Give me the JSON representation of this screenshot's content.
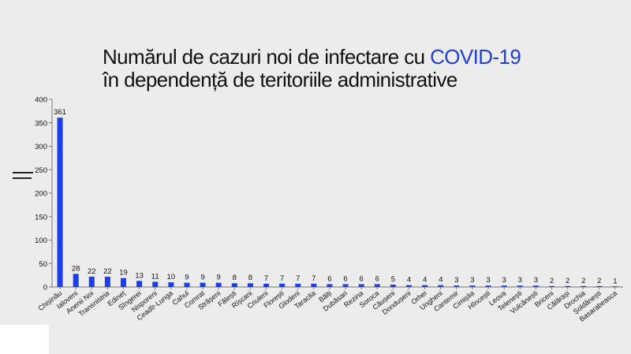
{
  "title": {
    "line1_prefix": "Numărul de cazuri noi de infectare cu ",
    "line1_accent": "COVID-19",
    "line2": "în dependență de teritoriile administrative"
  },
  "colors": {
    "bar": "#1a3df0",
    "accent": "#1f3fd8",
    "background": "#ececec"
  },
  "chart_data": {
    "type": "bar",
    "title": "Numărul de cazuri noi de infectare cu COVID-19 în dependență de teritoriile administrative",
    "categories": [
      "Chișinău",
      "Ialoveni",
      "Anenii Noi",
      "Transnistria",
      "Edineț",
      "Sîngerei",
      "Nisporeni",
      "Ceadîr-Lunga",
      "Cahul",
      "Comrat",
      "Strășeni",
      "Fălești",
      "Rîșcani",
      "Criuleni",
      "Florești",
      "Glodeni",
      "Taraclia",
      "Bălți",
      "Dubăsari",
      "Rezina",
      "Soroca",
      "Căușeni",
      "Dondușeni",
      "Orhei",
      "Ungheni",
      "Cantemir",
      "Cimișlia",
      "Hîncești",
      "Leova",
      "Telenești",
      "Vulcănești",
      "Briceni",
      "Călărași",
      "Drochia",
      "Șoldănești",
      "Basarabeasca"
    ],
    "values": [
      361,
      28,
      22,
      22,
      19,
      13,
      11,
      10,
      9,
      9,
      9,
      8,
      8,
      7,
      7,
      7,
      7,
      6,
      6,
      6,
      6,
      5,
      4,
      4,
      4,
      3,
      3,
      3,
      3,
      3,
      3,
      2,
      2,
      2,
      2,
      1
    ],
    "ylim": [
      0,
      400
    ],
    "yticks": [
      0,
      50,
      100,
      150,
      200,
      250,
      300,
      350,
      400
    ],
    "xlabel": "",
    "ylabel": "",
    "grid": false,
    "legend": "none"
  }
}
